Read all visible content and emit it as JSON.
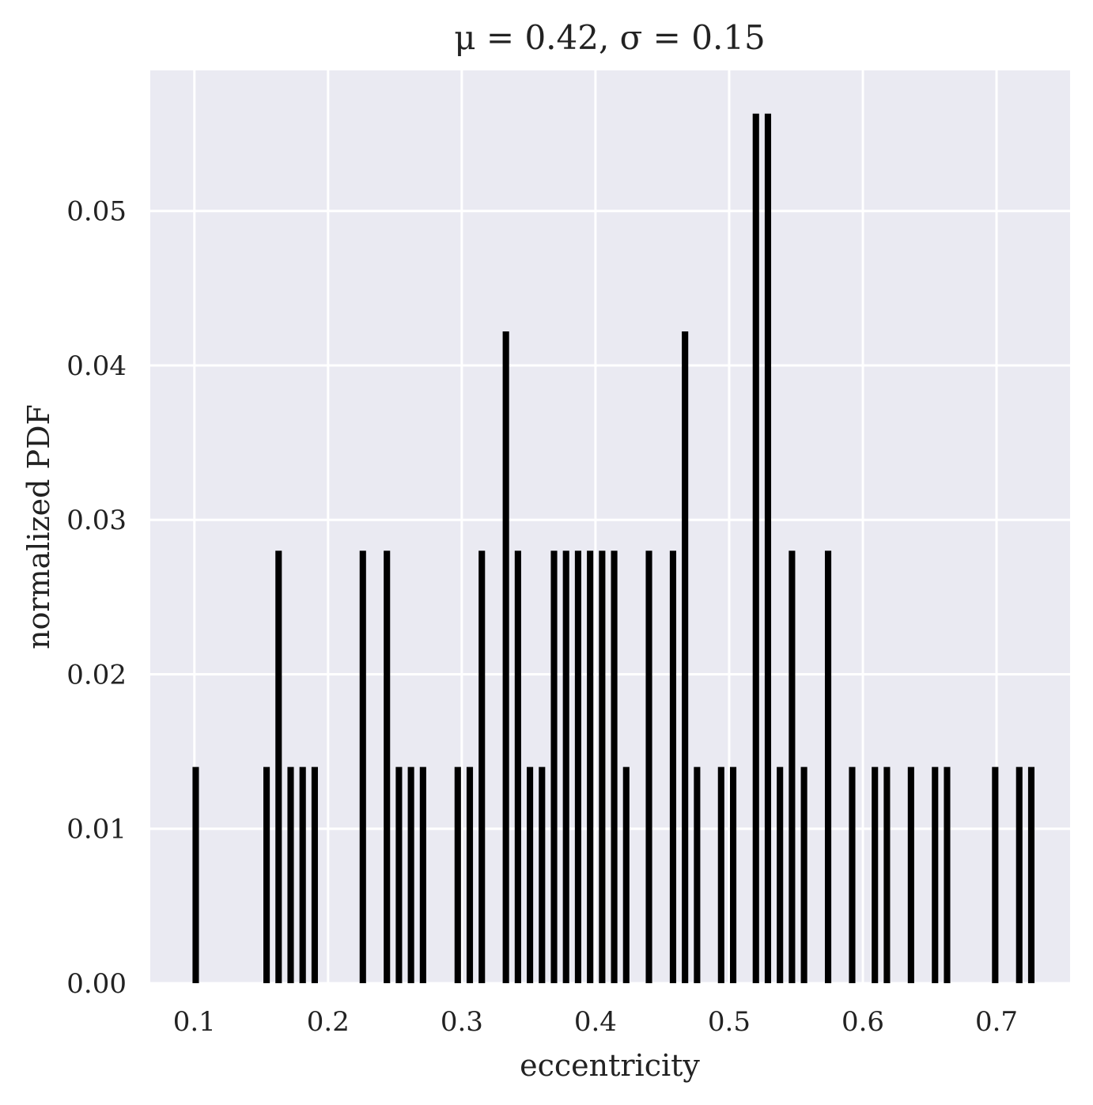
{
  "chart_data": {
    "type": "bar",
    "title": "μ = 0.42, σ = 0.15",
    "xlabel": "eccentricity",
    "ylabel": "normalized PDF",
    "xlim": [
      0.067,
      0.755
    ],
    "ylim": [
      0.0,
      0.0591
    ],
    "xticks": [
      0.1,
      0.2,
      0.3,
      0.4,
      0.5,
      0.6,
      0.7
    ],
    "xtick_labels": [
      "0.1",
      "0.2",
      "0.3",
      "0.4",
      "0.5",
      "0.6",
      "0.7"
    ],
    "yticks": [
      0.0,
      0.01,
      0.02,
      0.03,
      0.04,
      0.05
    ],
    "ytick_labels": [
      "0.00",
      "0.01",
      "0.02",
      "0.03",
      "0.04",
      "0.05"
    ],
    "grid": true,
    "background": "#eaeaf2",
    "bar_color": "#000000",
    "bar_width": 0.0048,
    "x": [
      0.101,
      0.154,
      0.163,
      0.172,
      0.181,
      0.19,
      0.226,
      0.244,
      0.253,
      0.262,
      0.271,
      0.297,
      0.306,
      0.315,
      0.333,
      0.342,
      0.351,
      0.36,
      0.369,
      0.378,
      0.387,
      0.396,
      0.405,
      0.414,
      0.423,
      0.44,
      0.458,
      0.467,
      0.476,
      0.494,
      0.503,
      0.52,
      0.529,
      0.538,
      0.547,
      0.556,
      0.574,
      0.592,
      0.609,
      0.618,
      0.636,
      0.654,
      0.663,
      0.699,
      0.717,
      0.726
    ],
    "values": [
      0.014,
      0.014,
      0.028,
      0.014,
      0.014,
      0.014,
      0.028,
      0.028,
      0.014,
      0.014,
      0.014,
      0.014,
      0.014,
      0.028,
      0.0422,
      0.028,
      0.014,
      0.014,
      0.028,
      0.028,
      0.028,
      0.028,
      0.028,
      0.028,
      0.014,
      0.028,
      0.028,
      0.0422,
      0.014,
      0.014,
      0.014,
      0.0563,
      0.0563,
      0.014,
      0.028,
      0.014,
      0.028,
      0.014,
      0.014,
      0.014,
      0.014,
      0.014,
      0.014,
      0.014,
      0.014,
      0.014
    ]
  }
}
